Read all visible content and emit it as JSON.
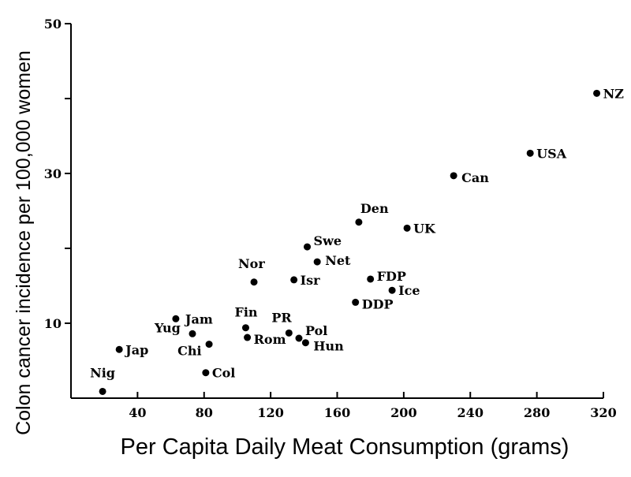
{
  "chart_data": {
    "type": "scatter",
    "xlabel": "Per Capita Daily Meat Consumption (grams)",
    "ylabel": "Colon cancer incidence per 100,000 women",
    "xlim": [
      0,
      320
    ],
    "ylim": [
      0,
      50
    ],
    "x_ticks": [
      40,
      80,
      120,
      160,
      200,
      240,
      280,
      320
    ],
    "y_ticks": [
      10,
      30,
      50
    ],
    "grid": false,
    "points": [
      {
        "label": "Nig",
        "x": 19,
        "y": 0.9
      },
      {
        "label": "Jap",
        "x": 29,
        "y": 6.5
      },
      {
        "label": "Jam",
        "x": 63,
        "y": 10.6
      },
      {
        "label": "Yug",
        "x": 73,
        "y": 8.6
      },
      {
        "label": "Chi",
        "x": 83,
        "y": 7.2
      },
      {
        "label": "Col",
        "x": 81,
        "y": 3.4
      },
      {
        "label": "Fin",
        "x": 105,
        "y": 9.4
      },
      {
        "label": "Rom",
        "x": 106,
        "y": 8.1
      },
      {
        "label": "Nor",
        "x": 110,
        "y": 15.5
      },
      {
        "label": "PR",
        "x": 131,
        "y": 8.7
      },
      {
        "label": "Pol",
        "x": 137,
        "y": 8.0
      },
      {
        "label": "Hun",
        "x": 141,
        "y": 7.4
      },
      {
        "label": "Isr",
        "x": 134,
        "y": 15.8
      },
      {
        "label": "Swe",
        "x": 142,
        "y": 20.2
      },
      {
        "label": "Net",
        "x": 148,
        "y": 18.2
      },
      {
        "label": "Den",
        "x": 173,
        "y": 23.5
      },
      {
        "label": "DDP",
        "x": 171,
        "y": 12.8
      },
      {
        "label": "FDP",
        "x": 180,
        "y": 15.9
      },
      {
        "label": "Ice",
        "x": 193,
        "y": 14.4
      },
      {
        "label": "UK",
        "x": 202,
        "y": 22.7
      },
      {
        "label": "Can",
        "x": 230,
        "y": 29.7
      },
      {
        "label": "USA",
        "x": 276,
        "y": 32.7
      },
      {
        "label": "NZ",
        "x": 316,
        "y": 40.7
      }
    ]
  }
}
